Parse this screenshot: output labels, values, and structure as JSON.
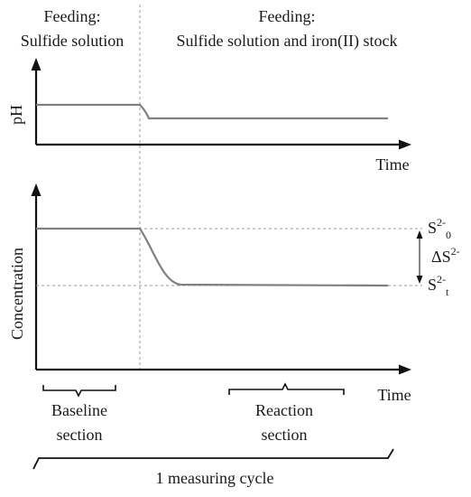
{
  "header": {
    "left_line1": "Feeding:",
    "left_line2": "Sulfide solution",
    "right_line1": "Feeding:",
    "right_line2": "Sulfide solution and iron(II) stock"
  },
  "ph_panel": {
    "ylabel": "pH",
    "xlabel": "Time"
  },
  "conc_panel": {
    "ylabel": "Concentration",
    "xlabel": "Time",
    "s0_label": "S",
    "s0_sup": "2-",
    "s0_sub": "0",
    "delta_label": "ΔS",
    "delta_sup": "2-",
    "st_label": "S",
    "st_sup": "2-",
    "st_sub": "t"
  },
  "sections": {
    "baseline_line1": "Baseline",
    "baseline_line2": "section",
    "reaction_line1": "Reaction",
    "reaction_line2": "section"
  },
  "cycle": {
    "label": "1 measuring cycle"
  }
}
